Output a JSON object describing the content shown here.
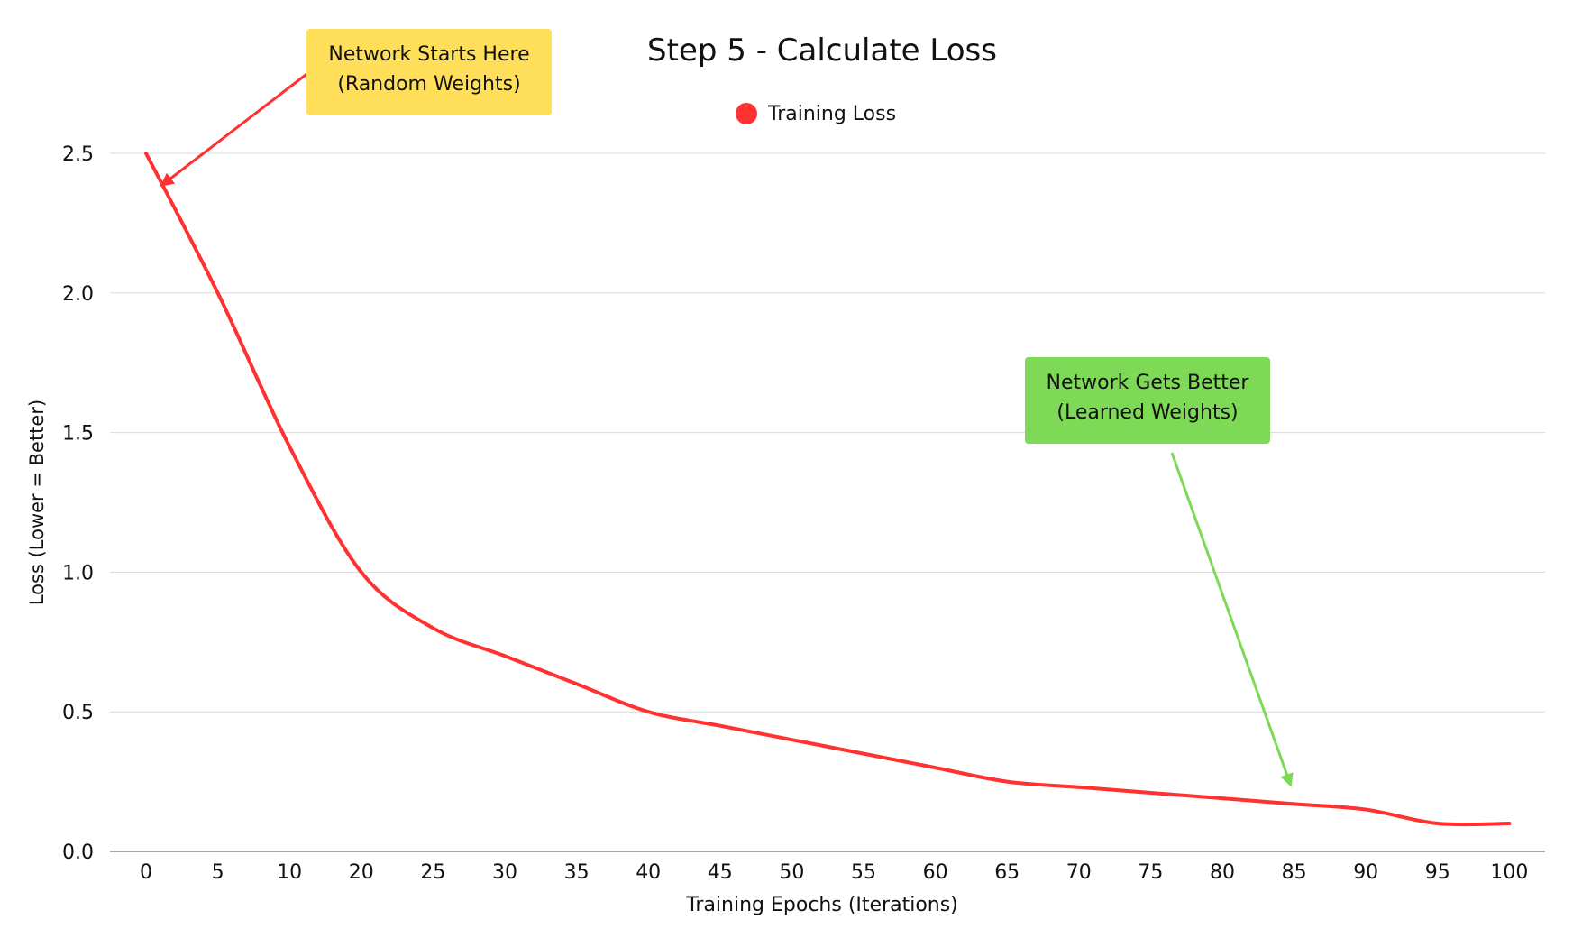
{
  "chart_data": {
    "type": "line",
    "title": "Step 5 - Calculate Loss",
    "xlabel": "Training Epochs (Iterations)",
    "ylabel": "Loss (Lower = Better)",
    "categories": [
      "0",
      "5",
      "10",
      "20",
      "25",
      "30",
      "35",
      "40",
      "45",
      "50",
      "55",
      "60",
      "65",
      "70",
      "75",
      "80",
      "85",
      "90",
      "95",
      "100"
    ],
    "ylim": [
      0,
      2.5
    ],
    "yticks": [
      "0.0",
      "0.5",
      "1.0",
      "1.5",
      "2.0",
      "2.5"
    ],
    "ytick_values": [
      0,
      0.5,
      1.0,
      1.5,
      2.0,
      2.5
    ],
    "grid": true,
    "legend_position": "top-center",
    "series": [
      {
        "name": "Training Loss",
        "color": "#ff3131",
        "values": [
          2.5,
          2.0,
          1.45,
          1.0,
          0.8,
          0.7,
          0.6,
          0.5,
          0.45,
          0.4,
          0.35,
          0.3,
          0.25,
          0.23,
          0.21,
          0.19,
          0.17,
          0.15,
          0.1,
          0.1
        ]
      }
    ],
    "annotations": [
      {
        "id": "start",
        "lines": [
          "Network Starts Here",
          "(Random Weights)"
        ],
        "background": "#ffde59",
        "arrow_color": "#ff3131",
        "points_to_category_index": 0
      },
      {
        "id": "end",
        "lines": [
          "Network Gets Better",
          "(Learned Weights)"
        ],
        "background": "#7ed957",
        "arrow_color": "#7ed957",
        "points_to_category_index": 16
      }
    ]
  }
}
